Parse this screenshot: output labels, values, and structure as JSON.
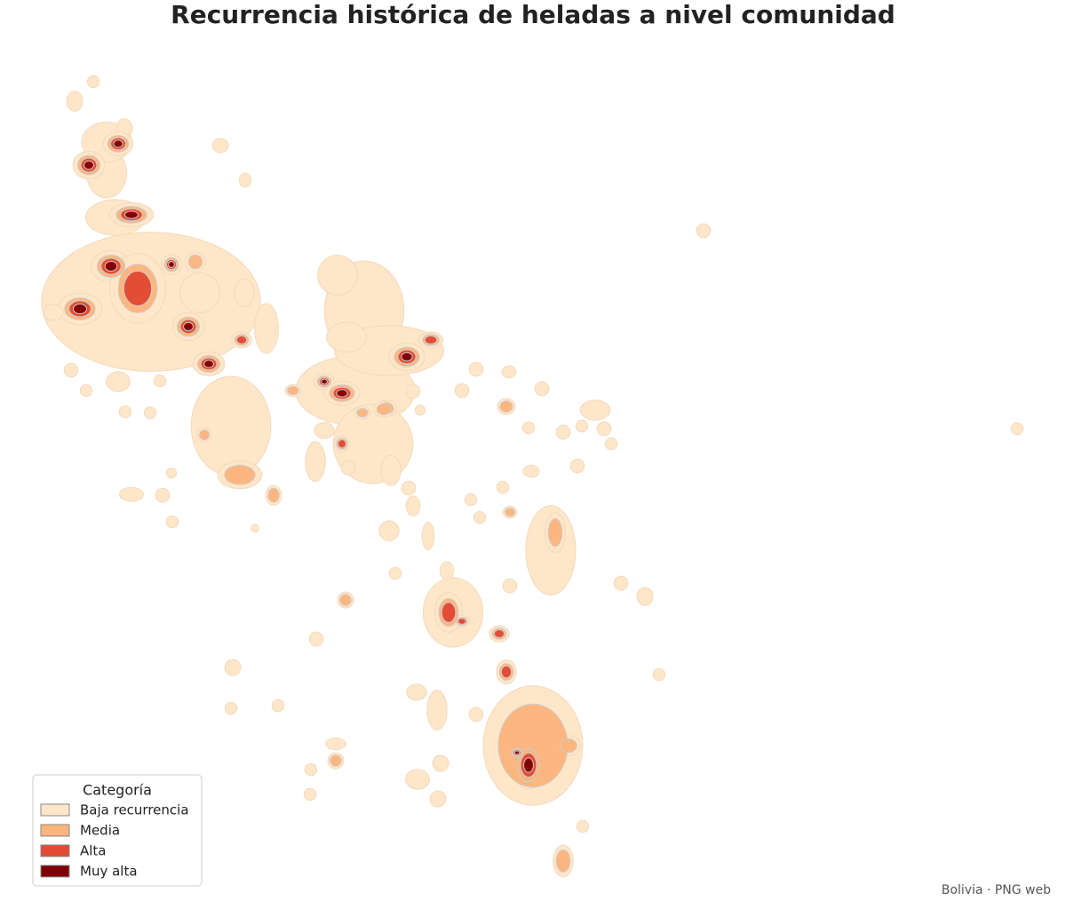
{
  "title": "Recurrencia histórica de heladas a nivel comunidad",
  "legend": {
    "title": "Categoría",
    "items": [
      {
        "label": "Baja recurrencia",
        "color": "#fee6c8"
      },
      {
        "label": "Media",
        "color": "#fdb57d"
      },
      {
        "label": "Alta",
        "color": "#e34a33"
      },
      {
        "label": "Muy alta",
        "color": "#7f0000"
      }
    ]
  },
  "credit": "Bolivia · PNG web"
}
